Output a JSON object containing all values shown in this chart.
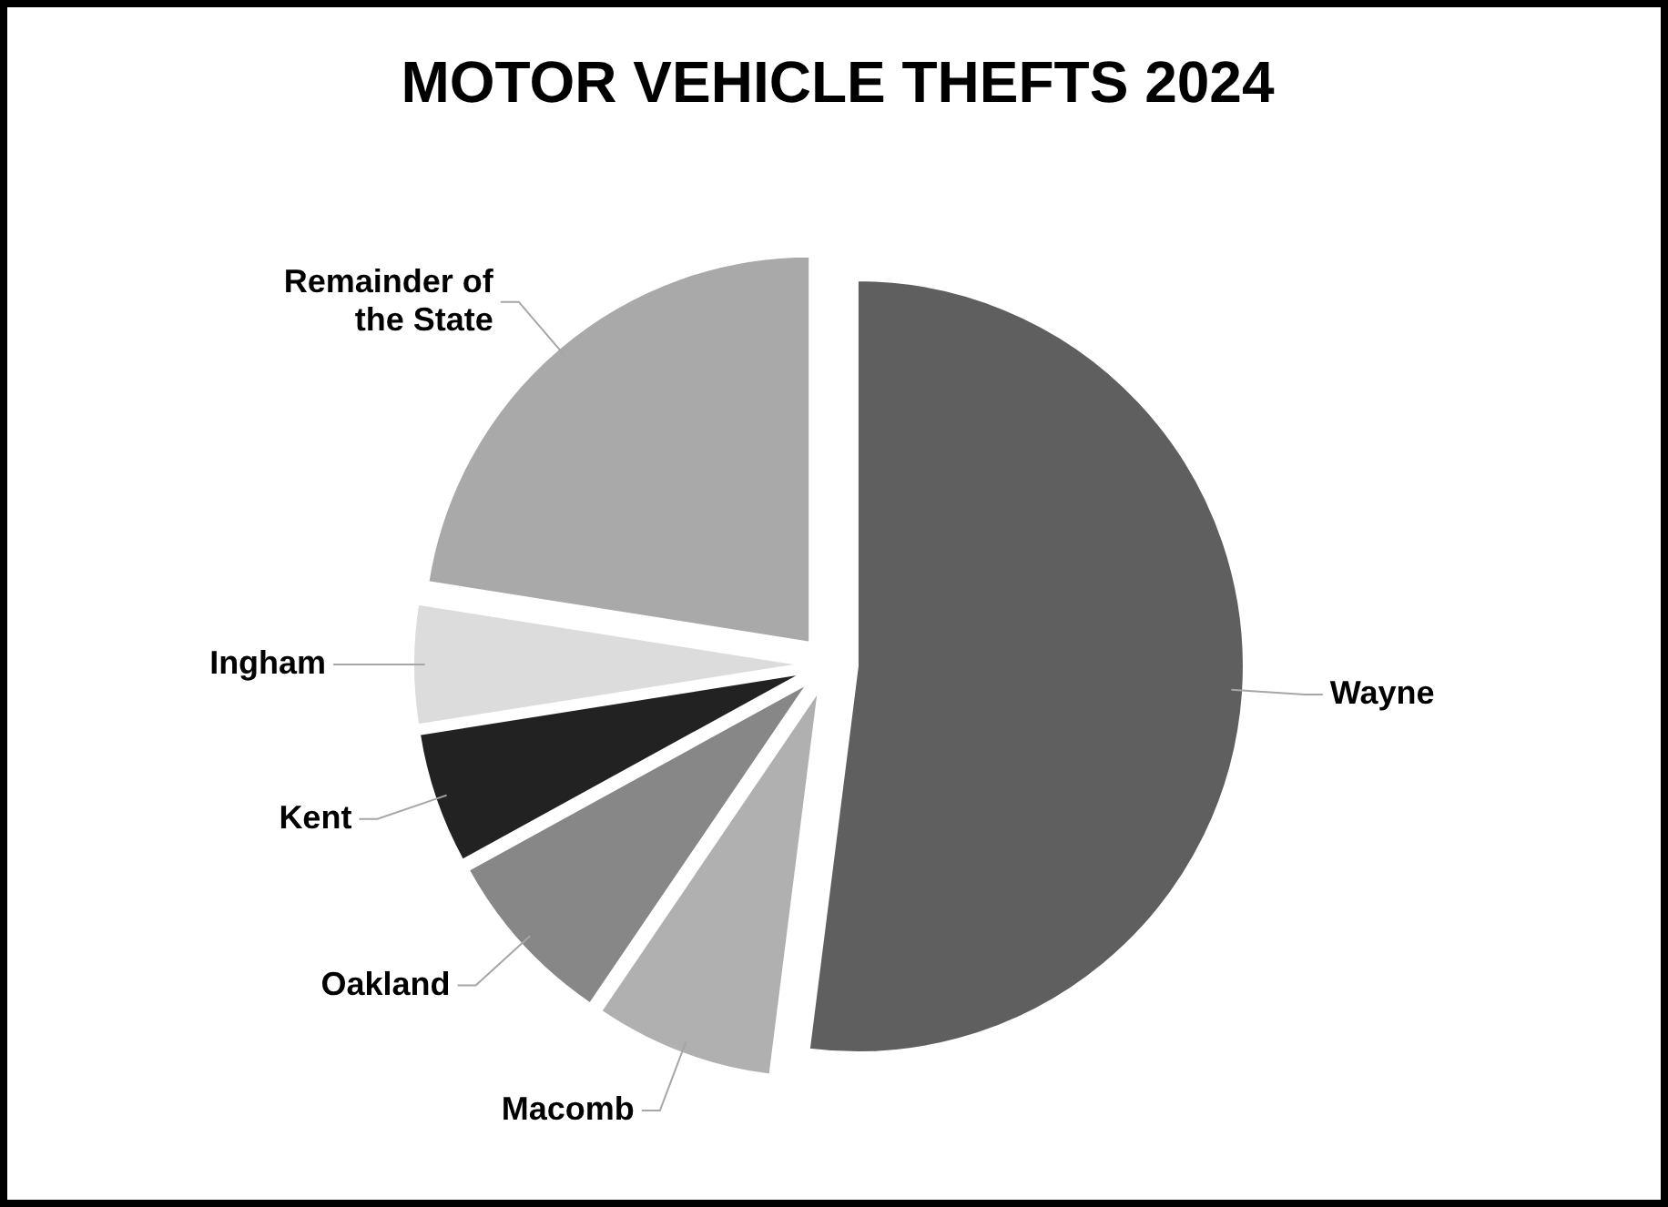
{
  "chart_data": {
    "type": "pie",
    "title": "MOTOR VEHICLE THEFTS 2024",
    "categories": [
      "Wayne",
      "Macomb",
      "Oakland",
      "Kent",
      "Ingham",
      "Remainder of the State"
    ],
    "values": [
      52,
      7.5,
      7.5,
      5.5,
      5,
      22.5
    ],
    "colors": [
      "#5f5f5f",
      "#b0b0b0",
      "#878787",
      "#222222",
      "#dcdcdc",
      "#a9a9a9"
    ]
  }
}
